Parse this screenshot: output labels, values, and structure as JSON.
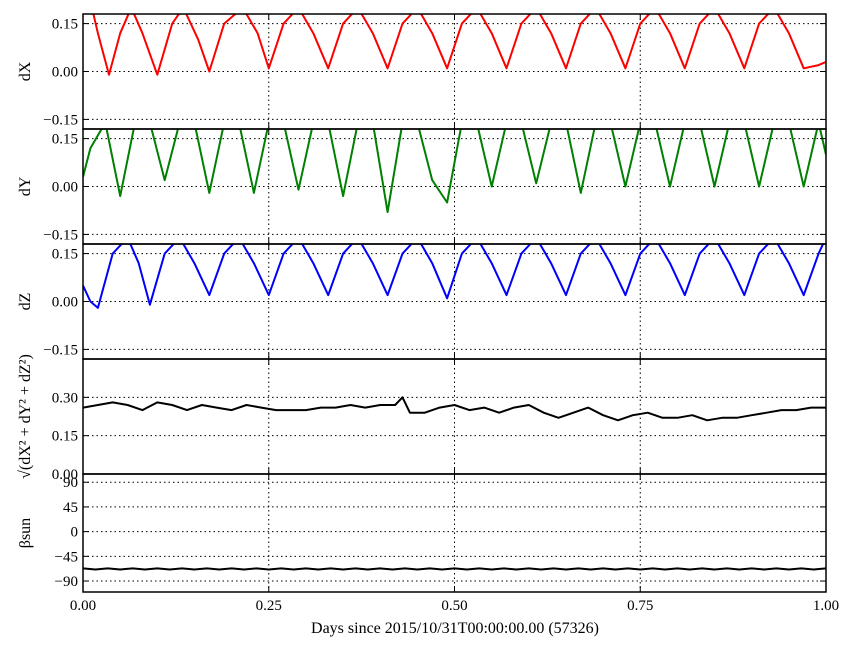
{
  "chart_data": {
    "type": "line",
    "xlabel": "Days since 2015/10/31T00:00:00.00 (57326)",
    "xlim": [
      0.0,
      1.0
    ],
    "xticks": [
      0.0,
      0.25,
      0.5,
      0.75,
      1.0
    ],
    "xtick_labels": [
      "0.00",
      "0.25",
      "0.50",
      "0.75",
      "1.00"
    ],
    "grid": true,
    "panels": [
      {
        "ylabel": "dX",
        "ylim": [
          -0.18,
          0.18
        ],
        "yticks": [
          -0.15,
          0.0,
          0.15
        ],
        "ytick_labels": [
          "−0.15",
          "0.00",
          "0.15"
        ],
        "color": "#ff0000",
        "x": [
          0.0,
          0.01,
          0.02,
          0.035,
          0.05,
          0.065,
          0.08,
          0.1,
          0.12,
          0.135,
          0.155,
          0.17,
          0.19,
          0.215,
          0.235,
          0.25,
          0.27,
          0.29,
          0.31,
          0.33,
          0.35,
          0.37,
          0.39,
          0.41,
          0.43,
          0.45,
          0.47,
          0.49,
          0.51,
          0.53,
          0.55,
          0.57,
          0.59,
          0.61,
          0.63,
          0.65,
          0.67,
          0.69,
          0.71,
          0.73,
          0.75,
          0.77,
          0.79,
          0.81,
          0.83,
          0.85,
          0.87,
          0.89,
          0.91,
          0.93,
          0.95,
          0.97,
          0.99,
          1.0
        ],
        "y": [
          0.2,
          0.22,
          0.12,
          -0.01,
          0.12,
          0.2,
          0.12,
          -0.01,
          0.15,
          0.2,
          0.1,
          0.0,
          0.15,
          0.2,
          0.12,
          0.01,
          0.15,
          0.2,
          0.12,
          0.01,
          0.15,
          0.2,
          0.12,
          0.01,
          0.15,
          0.2,
          0.12,
          0.01,
          0.15,
          0.2,
          0.12,
          0.01,
          0.15,
          0.2,
          0.12,
          0.01,
          0.15,
          0.2,
          0.12,
          0.01,
          0.15,
          0.2,
          0.12,
          0.01,
          0.15,
          0.2,
          0.12,
          0.01,
          0.15,
          0.2,
          0.12,
          0.01,
          0.02,
          0.03
        ]
      },
      {
        "ylabel": "dY",
        "ylim": [
          -0.18,
          0.18
        ],
        "yticks": [
          -0.15,
          0.0,
          0.15
        ],
        "ytick_labels": [
          "−0.15",
          "0.00",
          "0.15"
        ],
        "color": "#008000",
        "x": [
          0.0,
          0.01,
          0.03,
          0.05,
          0.07,
          0.09,
          0.11,
          0.13,
          0.15,
          0.17,
          0.19,
          0.21,
          0.23,
          0.25,
          0.27,
          0.29,
          0.31,
          0.33,
          0.35,
          0.37,
          0.39,
          0.41,
          0.43,
          0.45,
          0.47,
          0.49,
          0.51,
          0.53,
          0.55,
          0.57,
          0.59,
          0.61,
          0.63,
          0.65,
          0.67,
          0.69,
          0.71,
          0.73,
          0.75,
          0.77,
          0.79,
          0.81,
          0.83,
          0.85,
          0.87,
          0.89,
          0.91,
          0.93,
          0.95,
          0.97,
          0.99,
          1.0
        ],
        "y": [
          0.03,
          0.12,
          0.2,
          -0.03,
          0.2,
          0.2,
          0.02,
          0.2,
          0.2,
          -0.02,
          0.2,
          0.2,
          -0.02,
          0.2,
          0.2,
          -0.01,
          0.2,
          0.2,
          -0.03,
          0.2,
          0.2,
          -0.08,
          0.2,
          0.2,
          0.02,
          -0.05,
          0.2,
          0.2,
          0.0,
          0.2,
          0.2,
          0.01,
          0.2,
          0.2,
          -0.02,
          0.2,
          0.2,
          0.0,
          0.2,
          0.2,
          0.0,
          0.2,
          0.2,
          0.0,
          0.2,
          0.2,
          0.0,
          0.2,
          0.2,
          0.0,
          0.2,
          0.1
        ]
      },
      {
        "ylabel": "dZ",
        "ylim": [
          -0.18,
          0.18
        ],
        "yticks": [
          -0.15,
          0.0,
          0.15
        ],
        "ytick_labels": [
          "−0.15",
          "0.00",
          "0.15"
        ],
        "color": "#0000ff",
        "x": [
          0.0,
          0.01,
          0.02,
          0.04,
          0.06,
          0.075,
          0.09,
          0.11,
          0.13,
          0.15,
          0.17,
          0.19,
          0.21,
          0.23,
          0.25,
          0.27,
          0.29,
          0.31,
          0.33,
          0.35,
          0.37,
          0.39,
          0.41,
          0.43,
          0.45,
          0.47,
          0.49,
          0.51,
          0.53,
          0.55,
          0.57,
          0.59,
          0.61,
          0.63,
          0.65,
          0.67,
          0.69,
          0.71,
          0.73,
          0.75,
          0.77,
          0.79,
          0.81,
          0.83,
          0.85,
          0.87,
          0.89,
          0.91,
          0.93,
          0.95,
          0.97,
          0.99,
          1.0
        ],
        "y": [
          0.05,
          0.0,
          -0.02,
          0.15,
          0.2,
          0.12,
          -0.01,
          0.15,
          0.2,
          0.12,
          0.02,
          0.15,
          0.2,
          0.12,
          0.02,
          0.15,
          0.2,
          0.12,
          0.02,
          0.15,
          0.2,
          0.12,
          0.02,
          0.15,
          0.2,
          0.12,
          0.01,
          0.15,
          0.2,
          0.12,
          0.02,
          0.15,
          0.2,
          0.12,
          0.02,
          0.15,
          0.2,
          0.12,
          0.02,
          0.15,
          0.2,
          0.12,
          0.02,
          0.15,
          0.2,
          0.12,
          0.02,
          0.15,
          0.2,
          0.12,
          0.02,
          0.15,
          0.2
        ]
      },
      {
        "ylabel": "√(dX² + dY² + dZ²)",
        "ylim": [
          0.0,
          0.45
        ],
        "yticks": [
          0.0,
          0.15,
          0.3
        ],
        "ytick_labels": [
          "0.00",
          "0.15",
          "0.30"
        ],
        "color": "#000000",
        "x": [
          0.0,
          0.02,
          0.04,
          0.06,
          0.08,
          0.1,
          0.12,
          0.14,
          0.16,
          0.18,
          0.2,
          0.22,
          0.24,
          0.26,
          0.28,
          0.3,
          0.32,
          0.34,
          0.36,
          0.38,
          0.4,
          0.42,
          0.43,
          0.44,
          0.46,
          0.48,
          0.5,
          0.52,
          0.54,
          0.56,
          0.58,
          0.6,
          0.62,
          0.64,
          0.66,
          0.68,
          0.7,
          0.72,
          0.74,
          0.76,
          0.78,
          0.8,
          0.82,
          0.84,
          0.86,
          0.88,
          0.9,
          0.92,
          0.94,
          0.96,
          0.98,
          1.0
        ],
        "y": [
          0.26,
          0.27,
          0.28,
          0.27,
          0.25,
          0.28,
          0.27,
          0.25,
          0.27,
          0.26,
          0.25,
          0.27,
          0.26,
          0.25,
          0.25,
          0.25,
          0.26,
          0.26,
          0.27,
          0.26,
          0.27,
          0.27,
          0.3,
          0.24,
          0.24,
          0.26,
          0.27,
          0.25,
          0.26,
          0.24,
          0.26,
          0.27,
          0.24,
          0.22,
          0.24,
          0.26,
          0.23,
          0.21,
          0.23,
          0.24,
          0.22,
          0.22,
          0.23,
          0.21,
          0.22,
          0.22,
          0.23,
          0.24,
          0.25,
          0.25,
          0.26,
          0.26
        ]
      },
      {
        "ylabel": "βsun",
        "ylim": [
          -110,
          105
        ],
        "yticks": [
          -90,
          -45,
          0,
          45,
          90
        ],
        "ytick_labels": [
          "−90",
          "−45",
          "0",
          "45",
          "90"
        ],
        "color": "#000000",
        "x": [
          0.0,
          0.0167,
          0.0333,
          0.05,
          0.0667,
          0.0833,
          0.1,
          0.1167,
          0.1333,
          0.15,
          0.1667,
          0.1833,
          0.2,
          0.2167,
          0.2333,
          0.25,
          0.2667,
          0.2833,
          0.3,
          0.3167,
          0.3333,
          0.35,
          0.3667,
          0.3833,
          0.4,
          0.4167,
          0.4333,
          0.45,
          0.4667,
          0.4833,
          0.5,
          0.5167,
          0.5333,
          0.55,
          0.5667,
          0.5833,
          0.6,
          0.6167,
          0.6333,
          0.65,
          0.6667,
          0.6833,
          0.7,
          0.7167,
          0.7333,
          0.75,
          0.7667,
          0.7833,
          0.8,
          0.8167,
          0.8333,
          0.85,
          0.8667,
          0.8833,
          0.9,
          0.9167,
          0.9333,
          0.95,
          0.9667,
          0.9833,
          1.0
        ],
        "y": [
          -67,
          -69,
          -67,
          -69,
          -67,
          -69,
          -67,
          -69,
          -67,
          -69,
          -67,
          -69,
          -67,
          -69,
          -67,
          -69,
          -67,
          -69,
          -67,
          -69,
          -67,
          -69,
          -67,
          -69,
          -67,
          -69,
          -67,
          -69,
          -67,
          -69,
          -67,
          -69,
          -67,
          -69,
          -67,
          -69,
          -67,
          -69,
          -67,
          -69,
          -67,
          -69,
          -67,
          -69,
          -67,
          -69,
          -67,
          -69,
          -67,
          -69,
          -67,
          -69,
          -67,
          -69,
          -67,
          -69,
          -67,
          -69,
          -67,
          -69,
          -67
        ]
      }
    ]
  }
}
